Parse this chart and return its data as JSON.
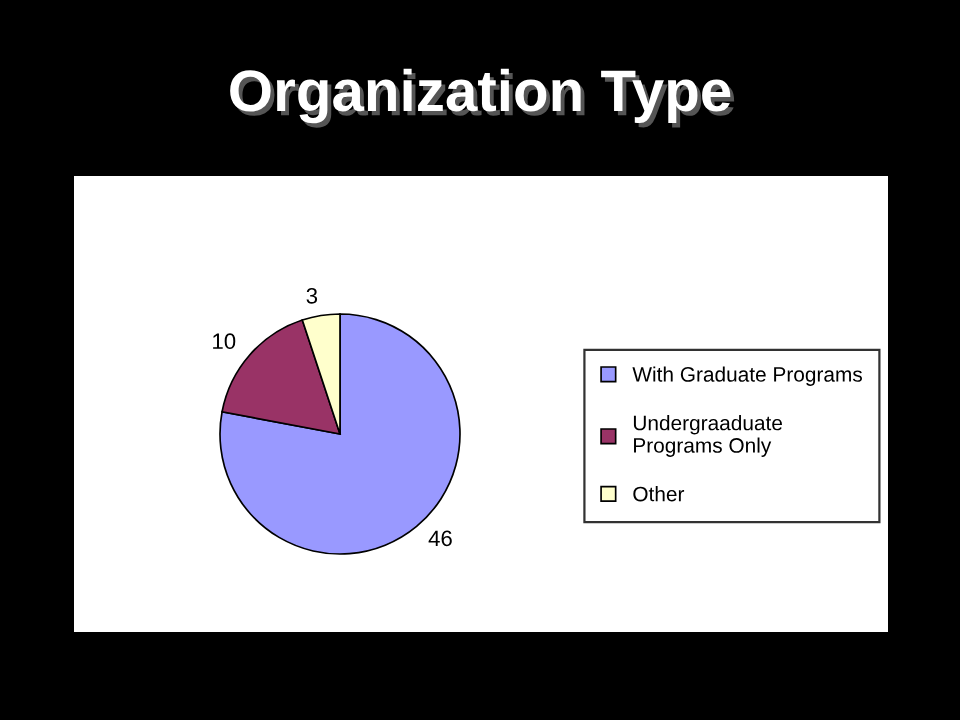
{
  "chart_data": {
    "type": "pie",
    "title": "Organization Type",
    "categories": [
      "With Graduate Programs",
      "Undergraaduate Programs Only",
      "Other"
    ],
    "values": [
      46,
      10,
      3
    ],
    "colors": [
      "#9999ff",
      "#993366",
      "#ffffcc"
    ],
    "data_labels": true,
    "legend": "right"
  }
}
